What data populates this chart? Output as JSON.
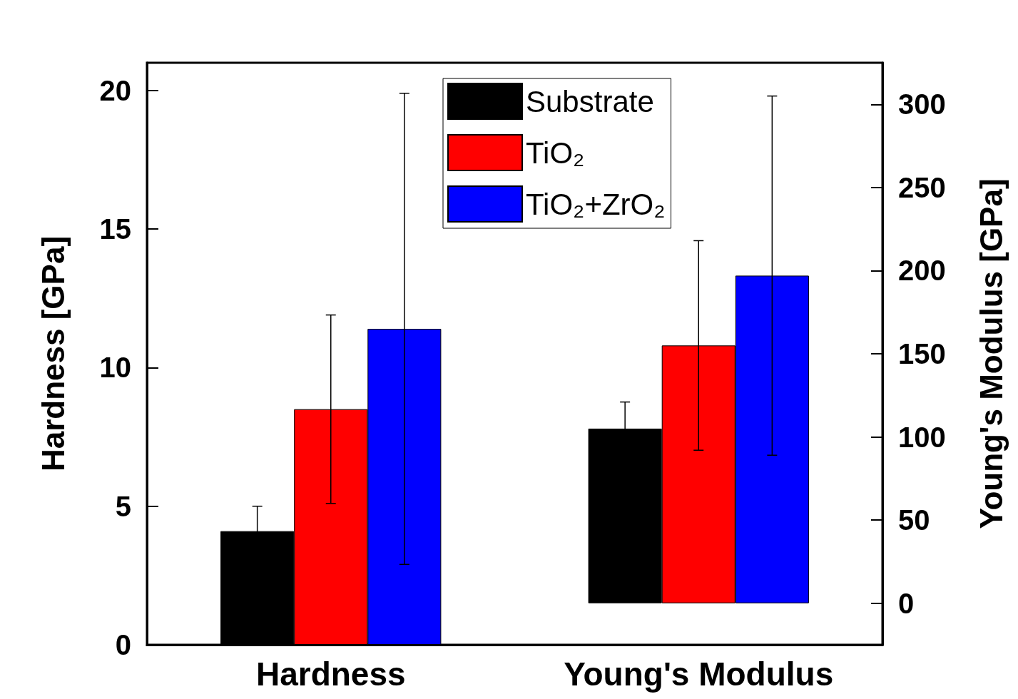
{
  "chart_data": {
    "type": "bar",
    "categories": [
      "Hardness",
      "Young's Modulus"
    ],
    "ylabel": "Hardness [GPa]",
    "y2label": "Young's Modulus [GPa]",
    "ylim": [
      0,
      21
    ],
    "yticks": [
      0,
      5,
      10,
      15,
      20
    ],
    "y2lim": [
      -25,
      325
    ],
    "y2ticks": [
      0,
      50,
      100,
      150,
      200,
      250,
      300
    ],
    "legend": "top",
    "grid": false,
    "series": [
      {
        "name": "Substrate",
        "color": "#000000",
        "values": [
          4.1,
          null
        ],
        "errors": [
          0.9,
          null
        ]
      },
      {
        "name": "TiO₂",
        "color": "#ff0000",
        "values": [
          8.5,
          null
        ],
        "errors": [
          3.4,
          null
        ]
      },
      {
        "name": "TiO₂+ZrO₂",
        "color": "#0000ff",
        "values": [
          11.4,
          null
        ],
        "errors": [
          8.5,
          null
        ]
      },
      {
        "color": "#000000",
        "axis": "y2",
        "values": [
          null,
          105
        ],
        "errors": [
          null,
          16
        ]
      },
      {
        "color": "#ff0000",
        "axis": "y2",
        "values": [
          null,
          155
        ],
        "errors": [
          null,
          63
        ]
      },
      {
        "color": "#0000ff",
        "axis": "y2",
        "values": [
          null,
          197
        ],
        "errors": [
          null,
          108
        ]
      }
    ]
  }
}
